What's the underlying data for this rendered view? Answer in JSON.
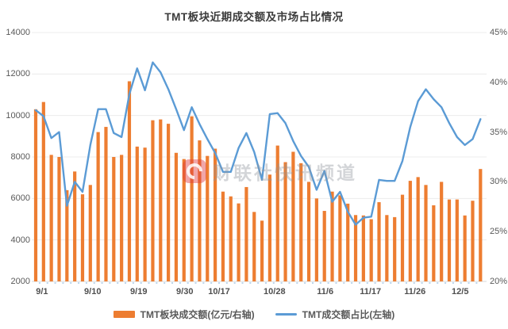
{
  "header": {
    "title": "TMT板块近期成交额及市场占比情况"
  },
  "watermark": {
    "icon": "cls-logo-icon",
    "text": "财联社快讯频道"
  },
  "legend": [
    {
      "label": "TMT板块成交额(亿元/右轴)",
      "swatch": "bar",
      "color": "#ED7D31"
    },
    {
      "label": "TMT成交额占比(左轴)",
      "swatch": "line",
      "color": "#5B9BD5"
    }
  ],
  "colors": {
    "bar": "#ED7D31",
    "line": "#5B9BD5",
    "grid": "#ECECEC",
    "axis_line": "#D9D9D9",
    "baseline_tick": "#BDD7EE",
    "axis_text": "#595959",
    "background": "#FFFFFF"
  },
  "chart_data": {
    "type": "bar+line combo",
    "title": "TMT板块近期成交额及市场占比情况",
    "grid": true,
    "legend_position": "bottom",
    "x_tick_labels": [
      "9/1",
      "9/10",
      "9/19",
      "9/30",
      "10/17",
      "10/28",
      "11/6",
      "11/17",
      "11/26",
      "12/5"
    ],
    "x_tick_positions": [
      0.8,
      7.3,
      13.2,
      19.1,
      23.5,
      30.6,
      37.1,
      42.9,
      48.6,
      54.4
    ],
    "left_axis": {
      "min": 2000,
      "max": 14000,
      "step": 2000,
      "ticks": [
        "14000",
        "12000",
        "10000",
        "8000",
        "6000",
        "4000",
        "2000"
      ]
    },
    "right_axis": {
      "min": 20,
      "max": 45,
      "step": 5,
      "unit": "%",
      "ticks": [
        "45%",
        "40%",
        "35%",
        "30%",
        "25%",
        "20%"
      ]
    },
    "series": [
      {
        "name": "TMT板块成交额(亿元/右轴)",
        "type": "bar",
        "color": "#ED7D31",
        "axis": "left",
        "values": [
          10300,
          10650,
          8100,
          8000,
          6400,
          7300,
          6200,
          6650,
          9200,
          9450,
          8000,
          8100,
          11650,
          8500,
          8450,
          9770,
          9810,
          9600,
          8200,
          7900,
          9960,
          8800,
          8050,
          8400,
          6330,
          6100,
          5760,
          6550,
          5350,
          4930,
          7150,
          8550,
          7750,
          8250,
          7700,
          6800,
          6000,
          5400,
          6330,
          6150,
          5750,
          5200,
          5180,
          5000,
          5820,
          5200,
          5100,
          6180,
          6850,
          7030,
          6650,
          5670,
          6800,
          5950,
          5950,
          5180,
          5890,
          7420
        ]
      },
      {
        "name": "TMT成交额占比(左轴)",
        "type": "line",
        "color": "#5B9BD5",
        "axis": "right",
        "values": [
          37.2,
          36.6,
          34.4,
          35.0,
          27.6,
          30.0,
          29.0,
          33.7,
          37.3,
          37.3,
          34.9,
          34.5,
          38.8,
          41.4,
          39.2,
          42.0,
          41.0,
          39.3,
          37.3,
          35.2,
          37.5,
          35.8,
          34.3,
          32.9,
          31.0,
          31.0,
          33.4,
          34.9,
          33.0,
          30.2,
          36.8,
          36.9,
          35.9,
          34.1,
          32.6,
          31.5,
          29.2,
          31.1,
          28.0,
          29.0,
          27.0,
          25.7,
          26.4,
          26.5,
          30.2,
          30.1,
          30.1,
          32.1,
          35.5,
          38.1,
          39.3,
          38.3,
          37.5,
          35.9,
          34.5,
          33.7,
          34.3,
          36.3
        ]
      }
    ]
  }
}
